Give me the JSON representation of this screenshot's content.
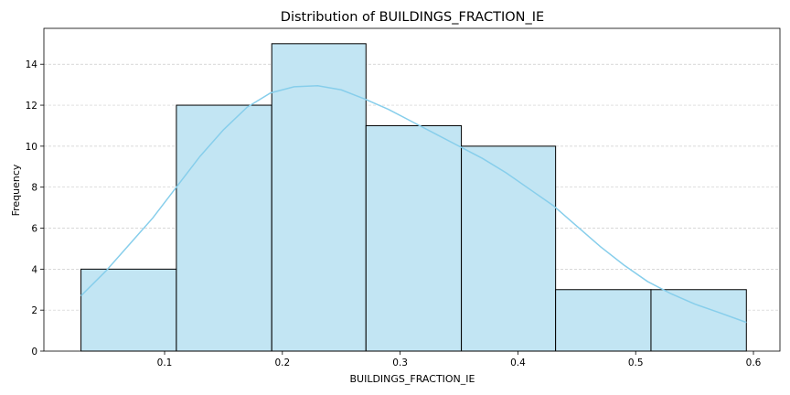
{
  "chart_data": {
    "type": "bar",
    "subtype": "histogram-with-kde",
    "title": "Distribution of BUILDINGS_FRACTION_IE",
    "xlabel": "BUILDINGS_FRACTION_IE",
    "ylabel": "Frequency",
    "xlim": [
      -0.0025,
      0.6225
    ],
    "ylim": [
      0,
      15.75
    ],
    "xticks": [
      0.1,
      0.2,
      0.3,
      0.4,
      0.5,
      0.6
    ],
    "xtick_labels": [
      "0.1",
      "0.2",
      "0.3",
      "0.4",
      "0.5",
      "0.6"
    ],
    "yticks": [
      0,
      2,
      4,
      6,
      8,
      10,
      12,
      14
    ],
    "ytick_labels": [
      "0",
      "2",
      "4",
      "6",
      "8",
      "10",
      "12",
      "14"
    ],
    "grid": "y-dashed",
    "bins": [
      {
        "x0": 0.029,
        "x1": 0.11,
        "count": 4
      },
      {
        "x0": 0.11,
        "x1": 0.191,
        "count": 12
      },
      {
        "x0": 0.191,
        "x1": 0.271,
        "count": 15
      },
      {
        "x0": 0.271,
        "x1": 0.352,
        "count": 11
      },
      {
        "x0": 0.352,
        "x1": 0.432,
        "count": 10
      },
      {
        "x0": 0.432,
        "x1": 0.513,
        "count": 3
      },
      {
        "x0": 0.513,
        "x1": 0.594,
        "count": 3
      }
    ],
    "kde": {
      "x": [
        0.029,
        0.05,
        0.07,
        0.09,
        0.11,
        0.13,
        0.15,
        0.17,
        0.19,
        0.21,
        0.23,
        0.25,
        0.27,
        0.29,
        0.31,
        0.33,
        0.35,
        0.37,
        0.39,
        0.41,
        0.43,
        0.45,
        0.47,
        0.49,
        0.51,
        0.53,
        0.55,
        0.57,
        0.594
      ],
      "y": [
        2.7,
        3.9,
        5.2,
        6.5,
        8.0,
        9.5,
        10.8,
        11.9,
        12.6,
        12.9,
        12.95,
        12.75,
        12.3,
        11.8,
        11.2,
        10.6,
        10.0,
        9.4,
        8.7,
        7.9,
        7.1,
        6.1,
        5.1,
        4.2,
        3.4,
        2.8,
        2.3,
        1.9,
        1.4
      ]
    },
    "colors": {
      "bar_fill": "#c2e5f3",
      "bar_edge": "#000000",
      "kde_line": "#87ceeb",
      "grid": "#cccccc"
    }
  }
}
